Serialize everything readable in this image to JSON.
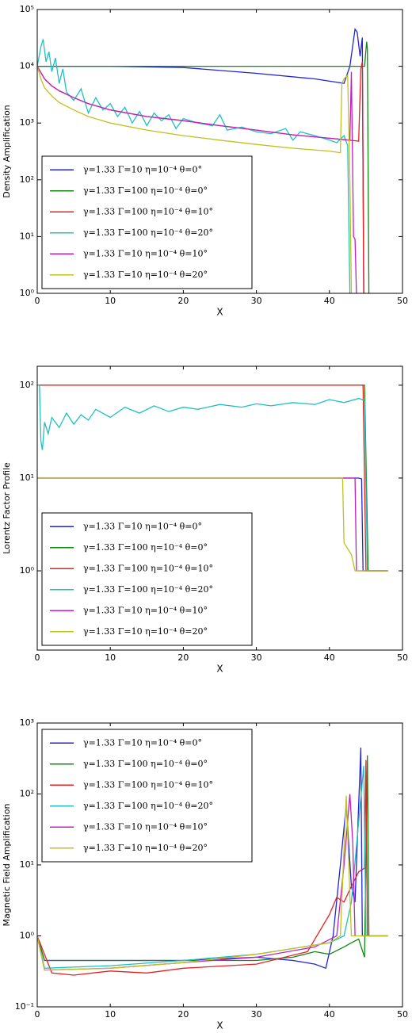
{
  "chart_data": [
    {
      "type": "line",
      "ylabel": "Density Amplification",
      "xlabel": "X",
      "ylog": true,
      "legend": "lower left",
      "xlim": [
        0,
        50
      ],
      "xticks": [
        0,
        10,
        20,
        30,
        40,
        50
      ],
      "ylim": [
        1,
        100000
      ],
      "yticks": [
        {
          "value": 1,
          "label": "10⁰"
        },
        {
          "value": 10,
          "label": "10¹"
        },
        {
          "value": 100,
          "label": "10²"
        },
        {
          "value": 1000,
          "label": "10³"
        },
        {
          "value": 10000,
          "label": "10⁴"
        },
        {
          "value": 100000,
          "label": "10⁵"
        }
      ],
      "series": [
        {
          "name": "γ=1.33 Γ=10   η=10⁻⁴ θ=0°",
          "color": "#2323d8",
          "x": [
            0,
            10,
            20,
            30,
            38,
            42,
            42.8,
            43.5,
            43.8,
            44.2,
            44.5,
            44.7
          ],
          "values": [
            10000,
            10000,
            9500,
            7500,
            6000,
            5000,
            10000,
            45000,
            40000,
            15000,
            32000,
            1
          ]
        },
        {
          "name": "γ=1.33 Γ=100 η=10⁻⁴ θ=0°",
          "color": "#108a10",
          "x": [
            0,
            44.8,
            45.1,
            45.2,
            45.4
          ],
          "values": [
            10000,
            10000,
            27000,
            20000,
            1
          ]
        },
        {
          "name": "γ=1.33 Γ=100 η=10⁻⁴ θ=10°",
          "color": "#e82020",
          "x": [
            0,
            1,
            2,
            3,
            5,
            7,
            10,
            15,
            20,
            25,
            30,
            35,
            40,
            44,
            44.3,
            44.5,
            44.7
          ],
          "values": [
            10000,
            6000,
            4500,
            3700,
            2800,
            2200,
            1700,
            1300,
            1100,
            900,
            750,
            620,
            540,
            480,
            9000,
            12000,
            1
          ]
        },
        {
          "name": "γ=1.33 Γ=100 η=10⁻⁴ θ=20°",
          "color": "#20c0c0",
          "x": [
            0,
            0.5,
            0.8,
            1.2,
            1.6,
            2,
            2.5,
            3,
            3.5,
            4,
            5,
            6,
            7,
            8,
            9,
            10,
            11,
            12,
            13,
            14,
            15,
            16,
            17,
            18,
            19,
            20,
            22,
            24,
            25,
            26,
            28,
            30,
            32,
            34,
            35,
            36,
            38,
            40,
            41,
            42,
            42.5,
            42.8
          ],
          "values": [
            10000,
            22000,
            30000,
            12000,
            18000,
            8000,
            14000,
            5000,
            9000,
            3500,
            2500,
            4000,
            1500,
            2800,
            1700,
            2200,
            1300,
            1900,
            1000,
            1600,
            900,
            1500,
            1100,
            1400,
            800,
            1200,
            1000,
            900,
            1400,
            750,
            850,
            700,
            650,
            800,
            500,
            700,
            600,
            500,
            450,
            600,
            400,
            1
          ]
        },
        {
          "name": "γ=1.33 Γ=10   η=10⁻⁴ θ=10°",
          "color": "#c020c0",
          "x": [
            0,
            1,
            2,
            3,
            5,
            7,
            10,
            15,
            20,
            25,
            30,
            35,
            40,
            42.8,
            43.0,
            43.3,
            43.5,
            43.7
          ],
          "values": [
            10000,
            6000,
            4500,
            3700,
            2800,
            2200,
            1700,
            1300,
            1100,
            900,
            750,
            620,
            540,
            500,
            8000,
            10,
            9,
            1
          ]
        },
        {
          "name": "γ=1.33 Γ=10   η=10⁻⁴ θ=20°",
          "color": "#c0c020",
          "x": [
            0,
            0.5,
            1,
            2,
            3,
            5,
            7,
            10,
            15,
            20,
            25,
            30,
            35,
            40,
            41.5,
            41.7,
            42,
            42.5,
            42.8,
            43
          ],
          "values": [
            10000,
            6000,
            4200,
            3000,
            2300,
            1700,
            1300,
            1000,
            750,
            600,
            500,
            420,
            360,
            320,
            300,
            5000,
            6000,
            7000,
            100,
            1
          ]
        }
      ]
    },
    {
      "type": "line",
      "ylabel": "Lorentz Factor Profile",
      "xlabel": "X",
      "ylog": true,
      "legend": "lower left",
      "xlim": [
        0,
        50
      ],
      "xticks": [
        0,
        10,
        20,
        30,
        40,
        50
      ],
      "ylim": [
        0.14,
        160
      ],
      "yticks": [
        {
          "value": 1,
          "label": "10⁰"
        },
        {
          "value": 10,
          "label": "10¹"
        },
        {
          "value": 100,
          "label": "10²"
        }
      ],
      "series": [
        {
          "name": "γ=1.33 Γ=10   η=10⁻⁴ θ=0°",
          "color": "#2323d8",
          "x": [
            0,
            44,
            44.4,
            44.6,
            48
          ],
          "values": [
            10,
            10,
            9.8,
            1,
            1
          ]
        },
        {
          "name": "γ=1.33 Γ=100 η=10⁻⁴ θ=0°",
          "color": "#108a10",
          "x": [
            0,
            44.8,
            45.3,
            48
          ],
          "values": [
            100,
            100,
            1,
            1
          ]
        },
        {
          "name": "γ=1.33 Γ=100 η=10⁻⁴ θ=10°",
          "color": "#e82020",
          "x": [
            0,
            44.6,
            45.0,
            48
          ],
          "values": [
            100,
            100,
            1,
            1
          ]
        },
        {
          "name": "γ=1.33 Γ=100 η=10⁻⁴ θ=20°",
          "color": "#20c0c0",
          "x": [
            0,
            0.3,
            0.5,
            0.7,
            1,
            1.5,
            2,
            3,
            4,
            5,
            6,
            7,
            8,
            10,
            12,
            14,
            16,
            18,
            20,
            22,
            25,
            28,
            30,
            32,
            35,
            38,
            40,
            42,
            44,
            44.5,
            44.8,
            45.2
          ],
          "values": [
            100,
            100,
            25,
            20,
            40,
            30,
            45,
            35,
            50,
            38,
            48,
            42,
            55,
            45,
            58,
            50,
            60,
            52,
            58,
            55,
            62,
            58,
            63,
            60,
            65,
            62,
            70,
            65,
            72,
            70,
            68,
            1
          ]
        },
        {
          "name": "γ=1.33 Γ=10   η=10⁻⁴ θ=10°",
          "color": "#c020c0",
          "x": [
            0,
            43.5,
            43.7,
            48
          ],
          "values": [
            10,
            10,
            1,
            1
          ]
        },
        {
          "name": "γ=1.33 Γ=10   η=10⁻⁴ θ=20°",
          "color": "#c0c020",
          "x": [
            0,
            41.8,
            42,
            43,
            43.5,
            48
          ],
          "values": [
            10,
            10,
            2,
            1.5,
            1,
            1
          ]
        }
      ]
    },
    {
      "type": "line",
      "ylabel": "Magnetic Field Amplification",
      "xlabel": "X",
      "ylog": true,
      "legend": "upper left",
      "xlim": [
        0,
        50
      ],
      "xticks": [
        0,
        10,
        20,
        30,
        40,
        50
      ],
      "ylim": [
        0.1,
        1000
      ],
      "yticks": [
        {
          "value": 0.1,
          "label": "10⁻¹"
        },
        {
          "value": 1,
          "label": "10⁰"
        },
        {
          "value": 10,
          "label": "10¹"
        },
        {
          "value": 100,
          "label": "10²"
        },
        {
          "value": 1000,
          "label": "10³"
        }
      ],
      "series": [
        {
          "name": "γ=1.33 Γ=10   η=10⁻⁴ θ=0°",
          "color": "#2323d8",
          "x": [
            0,
            1,
            20,
            30,
            35,
            38,
            39.5,
            40.5,
            41.5,
            42.3,
            43,
            43.5,
            44.3,
            44.5,
            48
          ],
          "values": [
            1,
            0.45,
            0.45,
            0.5,
            0.45,
            0.4,
            0.35,
            1,
            10,
            70,
            5,
            3,
            450,
            1,
            1
          ]
        },
        {
          "name": "γ=1.33 Γ=100 η=10⁻⁴ θ=0°",
          "color": "#108a10",
          "x": [
            0,
            1,
            30,
            35,
            38,
            40,
            42,
            43,
            44,
            44.8,
            45.2,
            45.4,
            48
          ],
          "values": [
            1,
            0.45,
            0.45,
            0.5,
            0.6,
            0.55,
            0.7,
            0.8,
            0.9,
            0.5,
            350,
            1,
            1
          ]
        },
        {
          "name": "γ=1.33 Γ=100 η=10⁻⁴ θ=10°",
          "color": "#e82020",
          "x": [
            0,
            2,
            5,
            10,
            15,
            20,
            30,
            37,
            40,
            41,
            42,
            43,
            44,
            44.8,
            45,
            45.2
          ],
          "values": [
            1,
            0.3,
            0.28,
            0.32,
            0.3,
            0.35,
            0.4,
            0.6,
            2,
            3.5,
            3,
            5,
            8,
            9,
            300,
            1
          ]
        },
        {
          "name": "γ=1.33 Γ=100 η=10⁻⁴ θ=20°",
          "color": "#20c0c0",
          "x": [
            0,
            1,
            10,
            20,
            30,
            40,
            42,
            43,
            44.7,
            45
          ],
          "values": [
            1,
            0.35,
            0.38,
            0.45,
            0.55,
            0.8,
            1,
            3,
            250,
            1
          ]
        },
        {
          "name": "γ=1.33 Γ=10   η=10⁻⁴ θ=10°",
          "color": "#c020c0",
          "x": [
            0,
            1,
            10,
            20,
            30,
            38,
            41,
            42,
            42.8,
            43.2,
            43.5
          ],
          "values": [
            1,
            0.33,
            0.35,
            0.42,
            0.5,
            0.7,
            1,
            10,
            100,
            20,
            1
          ]
        },
        {
          "name": "γ=1.33 Γ=10   η=10⁻⁴ θ=20°",
          "color": "#c0c020",
          "x": [
            0,
            1,
            10,
            20,
            30,
            40,
            41.5,
            42.3,
            43,
            48
          ],
          "values": [
            1,
            0.33,
            0.35,
            0.42,
            0.55,
            0.8,
            1,
            95,
            1,
            1
          ]
        }
      ]
    }
  ]
}
